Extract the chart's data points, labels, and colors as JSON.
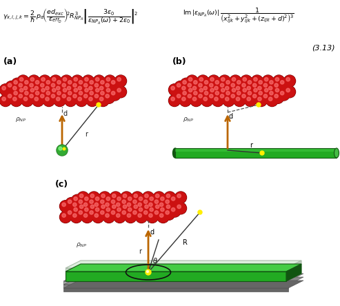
{
  "sphere_color": "#cc1111",
  "sphere_highlight": "#ff7777",
  "sphere_dark": "#770000",
  "nw_color": "#22aa22",
  "nw_dark": "#115511",
  "nw_light": "#44cc44",
  "qw_top": "#44cc44",
  "qw_front": "#22aa22",
  "qw_side": "#115511",
  "glass_top": "#ccddcc",
  "glass_side": "#aabbaa",
  "gray1": "#999999",
  "gray2": "#777777",
  "arrow_color": "#bb6600",
  "label_a": "(a)",
  "label_b": "(b)",
  "label_c": "(c)",
  "eq_number": "(3.13)"
}
